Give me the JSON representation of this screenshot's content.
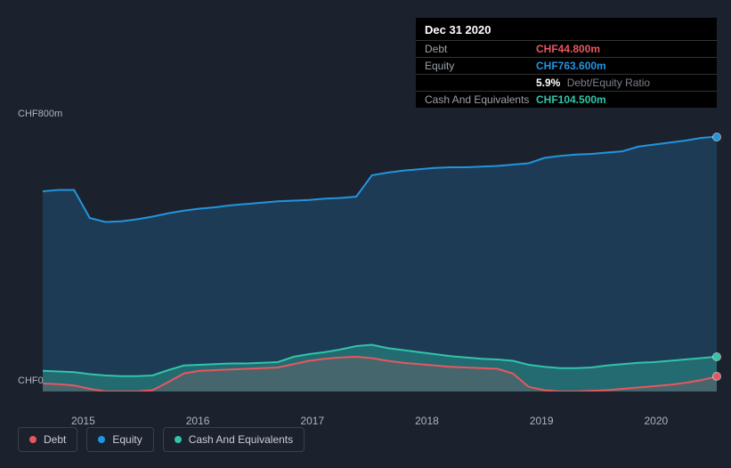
{
  "background_color": "#1b222d",
  "info_panel": {
    "background_color": "#000000",
    "title": "Dec 31 2020",
    "rows": [
      {
        "label": "Debt",
        "value": "CHF44.800m",
        "value_color": "#e8575f",
        "extra": ""
      },
      {
        "label": "Equity",
        "value": "CHF763.600m",
        "value_color": "#2394df",
        "extra": ""
      },
      {
        "label": "",
        "value": "5.9%",
        "value_color": "#ffffff",
        "extra": "Debt/Equity Ratio"
      },
      {
        "label": "Cash And Equivalents",
        "value": "CHF104.500m",
        "value_color": "#31c4a9",
        "extra": ""
      }
    ]
  },
  "chart": {
    "type": "area",
    "ylim": [
      0,
      800
    ],
    "y_ticks": [
      {
        "label": "CHF800m",
        "value": 800
      },
      {
        "label": "CHF0",
        "value": 0
      }
    ],
    "x_categories": [
      "2015",
      "2016",
      "2017",
      "2018",
      "2019",
      "2020"
    ],
    "x_positions_pct": [
      6,
      23,
      40,
      57,
      74,
      91
    ],
    "grid_color": "#2a3240",
    "series": [
      {
        "name": "Equity",
        "color": "#2394df",
        "fill_opacity": 0.22,
        "line_width": 2,
        "values": [
          600,
          604,
          604,
          520,
          508,
          510,
          516,
          524,
          534,
          542,
          548,
          552,
          558,
          562,
          566,
          570,
          572,
          574,
          578,
          580,
          584,
          648,
          656,
          662,
          666,
          670,
          672,
          672,
          674,
          676,
          680,
          684,
          700,
          706,
          710,
          712,
          716,
          720,
          734,
          740,
          746,
          752,
          760,
          763.6
        ]
      },
      {
        "name": "Cash And Equivalents",
        "color": "#31c4a9",
        "fill_opacity": 0.35,
        "line_width": 2,
        "values": [
          62,
          60,
          58,
          52,
          48,
          46,
          46,
          48,
          64,
          78,
          80,
          82,
          84,
          84,
          86,
          88,
          104,
          112,
          118,
          126,
          136,
          140,
          130,
          124,
          118,
          112,
          106,
          102,
          98,
          96,
          92,
          80,
          74,
          70,
          70,
          72,
          78,
          82,
          86,
          88,
          92,
          96,
          100,
          104.5
        ]
      },
      {
        "name": "Debt",
        "color": "#e8575f",
        "fill_opacity": 0.18,
        "line_width": 2,
        "values": [
          24,
          22,
          18,
          8,
          0,
          0,
          0,
          4,
          28,
          54,
          62,
          64,
          66,
          68,
          70,
          72,
          82,
          92,
          98,
          102,
          104,
          100,
          92,
          86,
          82,
          78,
          74,
          72,
          70,
          68,
          54,
          14,
          4,
          0,
          0,
          2,
          4,
          8,
          12,
          16,
          20,
          26,
          34,
          44.8
        ]
      }
    ],
    "end_dots": [
      {
        "color": "#2394df",
        "value": 763.6
      },
      {
        "color": "#31c4a9",
        "value": 104.5
      },
      {
        "color": "#e8575f",
        "value": 44.8
      }
    ]
  },
  "legend": {
    "items": [
      {
        "label": "Debt",
        "color": "#e8575f"
      },
      {
        "label": "Equity",
        "color": "#2394df"
      },
      {
        "label": "Cash And Equivalents",
        "color": "#31c4a9"
      }
    ]
  }
}
